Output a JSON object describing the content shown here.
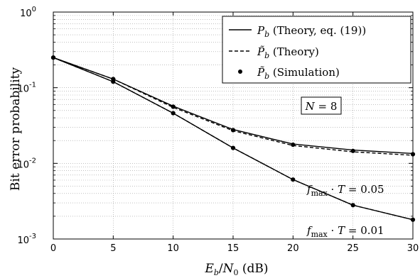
{
  "chart_data": {
    "type": "line",
    "xlabel": "E_b/N_0 (dB)",
    "ylabel": "Bit error probability",
    "x_ticks": [
      "0",
      "5",
      "10",
      "15",
      "20",
      "25",
      "30"
    ],
    "y_tick_mantissa": "10",
    "y_tick_exponents": [
      "0",
      "-1",
      "-2",
      "-3"
    ],
    "xlim": [
      0,
      30
    ],
    "ylim": [
      0.001,
      1
    ],
    "y_scale": "log",
    "grid": true,
    "legend_placement": "top-right",
    "legend": [
      "P_b (Theory, eq. (19))",
      "P̃_b (Theory)",
      "P̃_b (Simulation)"
    ],
    "annotations": {
      "n_box": "N = 8",
      "curve_005": "f_max · T = 0.05",
      "curve_001": "f_max · T = 0.01"
    },
    "x": [
      0,
      5,
      10,
      15,
      20,
      25,
      30
    ],
    "series": [
      {
        "group": "f_max·T=0.01",
        "style": "solid",
        "values": [
          0.25,
          0.12,
          0.046,
          0.016,
          0.0061,
          0.0028,
          0.0018
        ]
      },
      {
        "group": "f_max·T=0.01",
        "style": "dashed",
        "values": [
          0.25,
          0.12,
          0.046,
          0.016,
          0.0061,
          0.0028,
          0.0018
        ]
      },
      {
        "group": "f_max·T=0.01",
        "style": "markers",
        "values": [
          0.25,
          0.12,
          0.046,
          0.016,
          0.0061,
          0.0028,
          0.0018
        ]
      },
      {
        "group": "f_max·T=0.05",
        "style": "solid",
        "values": [
          0.25,
          0.13,
          0.057,
          0.028,
          0.018,
          0.015,
          0.0135
        ]
      },
      {
        "group": "f_max·T=0.05",
        "style": "dashed",
        "values": [
          0.25,
          0.13,
          0.055,
          0.027,
          0.0172,
          0.0142,
          0.0128
        ]
      },
      {
        "group": "f_max·T=0.05",
        "style": "markers",
        "values": [
          0.25,
          0.13,
          0.056,
          0.0275,
          0.0176,
          0.0146,
          0.0132
        ]
      }
    ]
  }
}
